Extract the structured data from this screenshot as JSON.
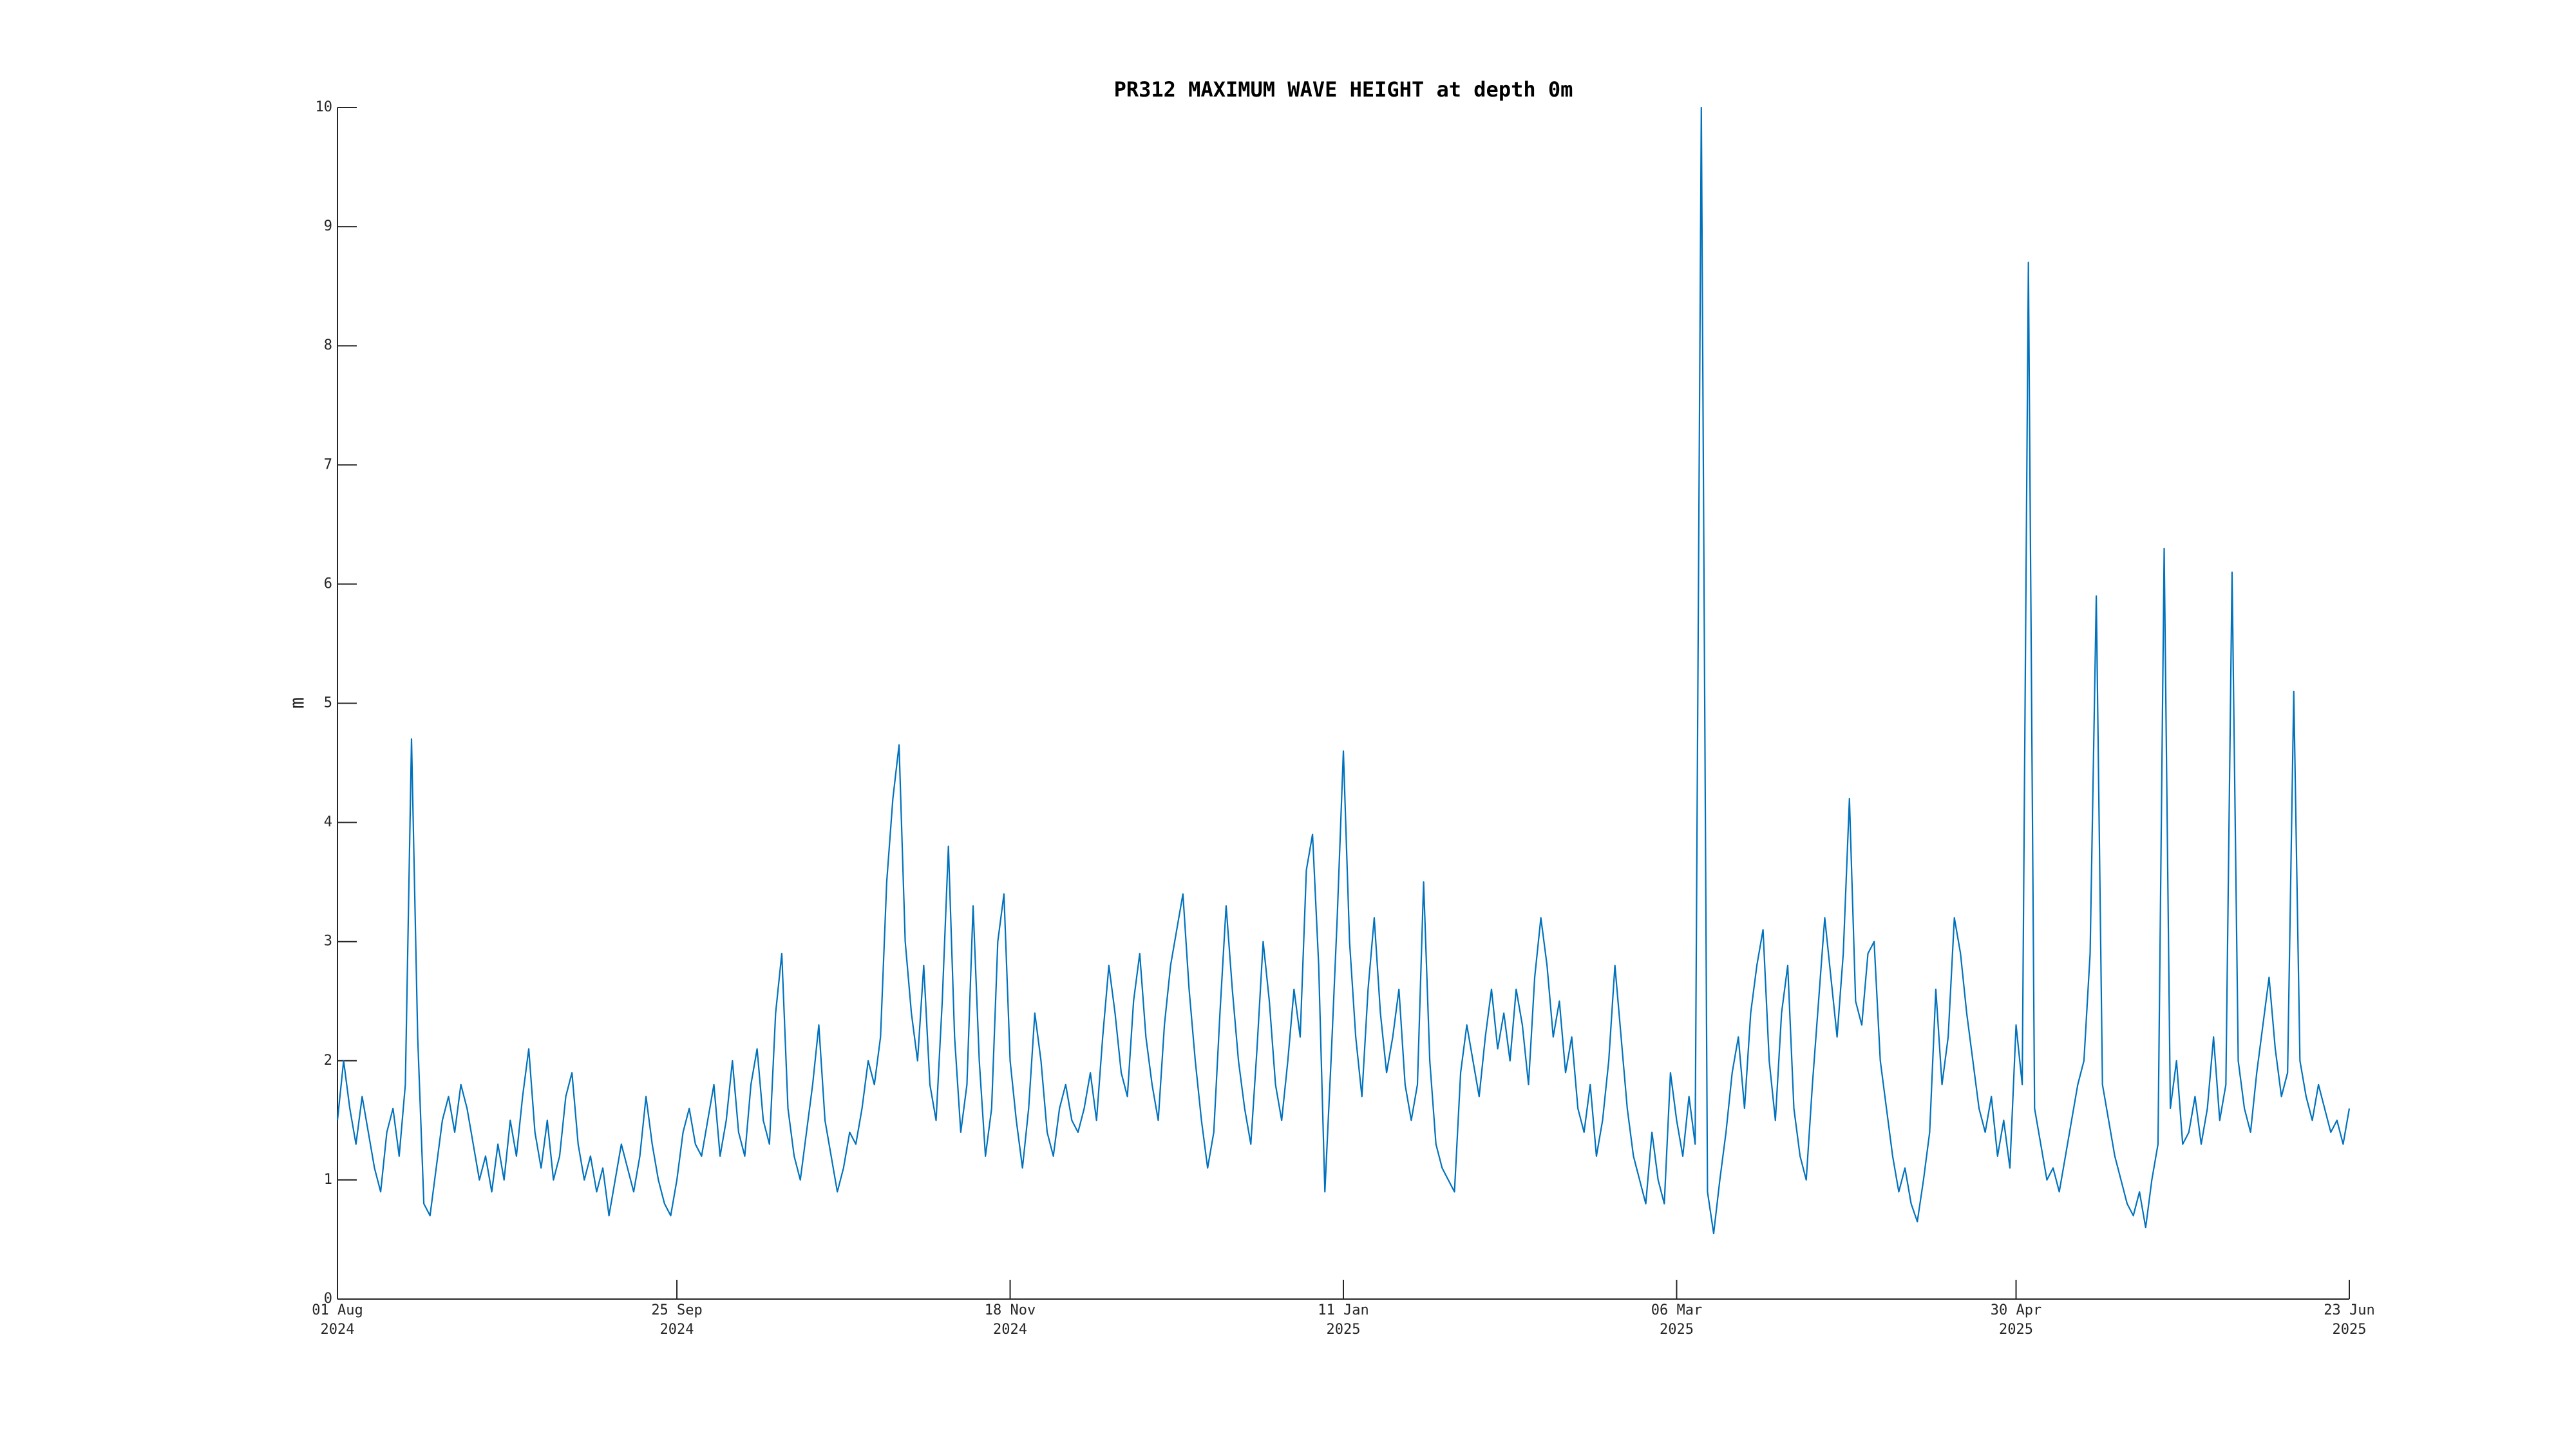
{
  "chart_data": {
    "type": "line",
    "title": "PR312 MAXIMUM WAVE HEIGHT at depth 0m",
    "ylabel": "m",
    "xlim": [
      "2024-08-01",
      "2025-06-23"
    ],
    "xticks": [
      {
        "value": "2024-08-01",
        "label": "01 Aug 2024"
      },
      {
        "value": "2024-09-25",
        "label": "25 Sep 2024"
      },
      {
        "value": "2024-11-18",
        "label": "18 Nov 2024"
      },
      {
        "value": "2025-01-11",
        "label": "11 Jan 2025"
      },
      {
        "value": "2025-03-06",
        "label": "06 Mar 2025"
      },
      {
        "value": "2025-04-30",
        "label": "30 Apr 2025"
      },
      {
        "value": "2025-06-23",
        "label": "23 Jun 2025"
      }
    ],
    "ylim": [
      0,
      10
    ],
    "yticks": [
      0,
      1,
      2,
      3,
      4,
      5,
      6,
      7,
      8,
      9,
      10
    ],
    "x": [
      "2024-08-01",
      "2024-08-02",
      "2024-08-03",
      "2024-08-04",
      "2024-08-05",
      "2024-08-06",
      "2024-08-07",
      "2024-08-08",
      "2024-08-09",
      "2024-08-10",
      "2024-08-11",
      "2024-08-12",
      "2024-08-13",
      "2024-08-14",
      "2024-08-15",
      "2024-08-16",
      "2024-08-17",
      "2024-08-18",
      "2024-08-19",
      "2024-08-20",
      "2024-08-21",
      "2024-08-22",
      "2024-08-23",
      "2024-08-24",
      "2024-08-25",
      "2024-08-26",
      "2024-08-27",
      "2024-08-28",
      "2024-08-29",
      "2024-08-30",
      "2024-08-31",
      "2024-09-01",
      "2024-09-02",
      "2024-09-03",
      "2024-09-04",
      "2024-09-05",
      "2024-09-06",
      "2024-09-07",
      "2024-09-08",
      "2024-09-09",
      "2024-09-10",
      "2024-09-11",
      "2024-09-12",
      "2024-09-13",
      "2024-09-14",
      "2024-09-15",
      "2024-09-16",
      "2024-09-17",
      "2024-09-18",
      "2024-09-19",
      "2024-09-20",
      "2024-09-21",
      "2024-09-22",
      "2024-09-23",
      "2024-09-24",
      "2024-09-25",
      "2024-09-26",
      "2024-09-27",
      "2024-09-28",
      "2024-09-29",
      "2024-09-30",
      "2024-10-01",
      "2024-10-02",
      "2024-10-03",
      "2024-10-04",
      "2024-10-05",
      "2024-10-06",
      "2024-10-07",
      "2024-10-08",
      "2024-10-09",
      "2024-10-10",
      "2024-10-11",
      "2024-10-12",
      "2024-10-13",
      "2024-10-14",
      "2024-10-15",
      "2024-10-16",
      "2024-10-17",
      "2024-10-18",
      "2024-10-19",
      "2024-10-20",
      "2024-10-21",
      "2024-10-22",
      "2024-10-23",
      "2024-10-24",
      "2024-10-25",
      "2024-10-26",
      "2024-10-27",
      "2024-10-28",
      "2024-10-29",
      "2024-10-30",
      "2024-10-31",
      "2024-11-01",
      "2024-11-02",
      "2024-11-03",
      "2024-11-04",
      "2024-11-05",
      "2024-11-06",
      "2024-11-07",
      "2024-11-08",
      "2024-11-09",
      "2024-11-10",
      "2024-11-11",
      "2024-11-12",
      "2024-11-13",
      "2024-11-14",
      "2024-11-15",
      "2024-11-16",
      "2024-11-17",
      "2024-11-18",
      "2024-11-19",
      "2024-11-20",
      "2024-11-21",
      "2024-11-22",
      "2024-11-23",
      "2024-11-24",
      "2024-11-25",
      "2024-11-26",
      "2024-11-27",
      "2024-11-28",
      "2024-11-29",
      "2024-11-30",
      "2024-12-01",
      "2024-12-02",
      "2024-12-03",
      "2024-12-04",
      "2024-12-05",
      "2024-12-06",
      "2024-12-07",
      "2024-12-08",
      "2024-12-09",
      "2024-12-10",
      "2024-12-11",
      "2024-12-12",
      "2024-12-13",
      "2024-12-14",
      "2024-12-15",
      "2024-12-16",
      "2024-12-17",
      "2024-12-18",
      "2024-12-19",
      "2024-12-20",
      "2024-12-21",
      "2024-12-22",
      "2024-12-23",
      "2024-12-24",
      "2024-12-25",
      "2024-12-26",
      "2024-12-27",
      "2024-12-28",
      "2024-12-29",
      "2024-12-30",
      "2024-12-31",
      "2025-01-01",
      "2025-01-02",
      "2025-01-03",
      "2025-01-04",
      "2025-01-05",
      "2025-01-06",
      "2025-01-07",
      "2025-01-08",
      "2025-01-09",
      "2025-01-10",
      "2025-01-11",
      "2025-01-12",
      "2025-01-13",
      "2025-01-14",
      "2025-01-15",
      "2025-01-16",
      "2025-01-17",
      "2025-01-18",
      "2025-01-19",
      "2025-01-20",
      "2025-01-21",
      "2025-01-22",
      "2025-01-23",
      "2025-01-24",
      "2025-01-25",
      "2025-01-26",
      "2025-01-27",
      "2025-01-28",
      "2025-01-29",
      "2025-01-30",
      "2025-01-31",
      "2025-02-01",
      "2025-02-02",
      "2025-02-03",
      "2025-02-04",
      "2025-02-05",
      "2025-02-06",
      "2025-02-07",
      "2025-02-08",
      "2025-02-09",
      "2025-02-10",
      "2025-02-11",
      "2025-02-12",
      "2025-02-13",
      "2025-02-14",
      "2025-02-15",
      "2025-02-16",
      "2025-02-17",
      "2025-02-18",
      "2025-02-19",
      "2025-02-20",
      "2025-02-21",
      "2025-02-22",
      "2025-02-23",
      "2025-02-24",
      "2025-02-25",
      "2025-02-26",
      "2025-02-27",
      "2025-02-28",
      "2025-03-01",
      "2025-03-02",
      "2025-03-03",
      "2025-03-04",
      "2025-03-05",
      "2025-03-06",
      "2025-03-07",
      "2025-03-08",
      "2025-03-09",
      "2025-03-10",
      "2025-03-11",
      "2025-03-12",
      "2025-03-13",
      "2025-03-14",
      "2025-03-15",
      "2025-03-16",
      "2025-03-17",
      "2025-03-18",
      "2025-03-19",
      "2025-03-20",
      "2025-03-21",
      "2025-03-22",
      "2025-03-23",
      "2025-03-24",
      "2025-03-25",
      "2025-03-26",
      "2025-03-27",
      "2025-03-28",
      "2025-03-29",
      "2025-03-30",
      "2025-03-31",
      "2025-04-01",
      "2025-04-02",
      "2025-04-03",
      "2025-04-04",
      "2025-04-05",
      "2025-04-06",
      "2025-04-07",
      "2025-04-08",
      "2025-04-09",
      "2025-04-10",
      "2025-04-11",
      "2025-04-12",
      "2025-04-13",
      "2025-04-14",
      "2025-04-15",
      "2025-04-16",
      "2025-04-17",
      "2025-04-18",
      "2025-04-19",
      "2025-04-20",
      "2025-04-21",
      "2025-04-22",
      "2025-04-23",
      "2025-04-24",
      "2025-04-25",
      "2025-04-26",
      "2025-04-27",
      "2025-04-28",
      "2025-04-29",
      "2025-04-30",
      "2025-05-01",
      "2025-05-02",
      "2025-05-03",
      "2025-05-04",
      "2025-05-05",
      "2025-05-06",
      "2025-05-07",
      "2025-05-08",
      "2025-05-09",
      "2025-05-10",
      "2025-05-11",
      "2025-05-12",
      "2025-05-13",
      "2025-05-14",
      "2025-05-15",
      "2025-05-16",
      "2025-05-17",
      "2025-05-18",
      "2025-05-19",
      "2025-05-20",
      "2025-05-21",
      "2025-05-22",
      "2025-05-23",
      "2025-05-24",
      "2025-05-25",
      "2025-05-26",
      "2025-05-27",
      "2025-05-28",
      "2025-05-29",
      "2025-05-30",
      "2025-05-31",
      "2025-06-01",
      "2025-06-02",
      "2025-06-03",
      "2025-06-04",
      "2025-06-05",
      "2025-06-06",
      "2025-06-07",
      "2025-06-08",
      "2025-06-09",
      "2025-06-10",
      "2025-06-11",
      "2025-06-12",
      "2025-06-13",
      "2025-06-14",
      "2025-06-15",
      "2025-06-16",
      "2025-06-17",
      "2025-06-18",
      "2025-06-19",
      "2025-06-20",
      "2025-06-21",
      "2025-06-22",
      "2025-06-23"
    ],
    "series": [
      {
        "color": "#0072bd",
        "values": [
          1.5,
          2.0,
          1.6,
          1.3,
          1.7,
          1.4,
          1.1,
          0.9,
          1.4,
          1.6,
          1.2,
          1.8,
          4.7,
          2.2,
          0.8,
          0.7,
          1.1,
          1.5,
          1.7,
          1.4,
          1.8,
          1.6,
          1.3,
          1.0,
          1.2,
          0.9,
          1.3,
          1.0,
          1.5,
          1.2,
          1.7,
          2.1,
          1.4,
          1.1,
          1.5,
          1.0,
          1.2,
          1.7,
          1.9,
          1.3,
          1.0,
          1.2,
          0.9,
          1.1,
          0.7,
          1.0,
          1.3,
          1.1,
          0.9,
          1.2,
          1.7,
          1.3,
          1.0,
          0.8,
          0.7,
          1.0,
          1.4,
          1.6,
          1.3,
          1.2,
          1.5,
          1.8,
          1.2,
          1.5,
          2.0,
          1.4,
          1.2,
          1.8,
          2.1,
          1.5,
          1.3,
          2.4,
          2.9,
          1.6,
          1.2,
          1.0,
          1.4,
          1.8,
          2.3,
          1.5,
          1.2,
          0.9,
          1.1,
          1.4,
          1.3,
          1.6,
          2.0,
          1.8,
          2.2,
          3.5,
          4.2,
          4.65,
          3.0,
          2.4,
          2.0,
          2.8,
          1.8,
          1.5,
          2.5,
          3.8,
          2.2,
          1.4,
          1.8,
          3.3,
          2.0,
          1.2,
          1.6,
          3.0,
          3.4,
          2.0,
          1.5,
          1.1,
          1.6,
          2.4,
          2.0,
          1.4,
          1.2,
          1.6,
          1.8,
          1.5,
          1.4,
          1.6,
          1.9,
          1.5,
          2.2,
          2.8,
          2.4,
          1.9,
          1.7,
          2.5,
          2.9,
          2.2,
          1.8,
          1.5,
          2.3,
          2.8,
          3.1,
          3.4,
          2.6,
          2.0,
          1.5,
          1.1,
          1.4,
          2.4,
          3.3,
          2.6,
          2.0,
          1.6,
          1.3,
          2.1,
          3.0,
          2.5,
          1.8,
          1.5,
          2.0,
          2.6,
          2.2,
          3.6,
          3.9,
          2.8,
          0.9,
          2.0,
          3.2,
          4.6,
          3.0,
          2.2,
          1.7,
          2.6,
          3.2,
          2.4,
          1.9,
          2.2,
          2.6,
          1.8,
          1.5,
          1.8,
          3.5,
          2.0,
          1.3,
          1.1,
          1.0,
          0.9,
          1.9,
          2.3,
          2.0,
          1.7,
          2.2,
          2.6,
          2.1,
          2.4,
          2.0,
          2.6,
          2.3,
          1.8,
          2.7,
          3.2,
          2.8,
          2.2,
          2.5,
          1.9,
          2.2,
          1.6,
          1.4,
          1.8,
          1.2,
          1.5,
          2.0,
          2.8,
          2.2,
          1.6,
          1.2,
          1.0,
          0.8,
          1.4,
          1.0,
          0.8,
          1.9,
          1.5,
          1.2,
          1.7,
          1.3,
          10,
          0.9,
          0.55,
          1.0,
          1.4,
          1.9,
          2.2,
          1.6,
          2.4,
          2.8,
          3.1,
          2.0,
          1.5,
          2.4,
          2.8,
          1.6,
          1.2,
          1.0,
          1.8,
          2.5,
          3.2,
          2.7,
          2.2,
          2.9,
          4.2,
          2.5,
          2.3,
          2.9,
          3.0,
          2.0,
          1.6,
          1.2,
          0.9,
          1.1,
          0.8,
          0.65,
          1.0,
          1.4,
          2.6,
          1.8,
          2.2,
          3.2,
          2.9,
          2.4,
          2.0,
          1.6,
          1.4,
          1.7,
          1.2,
          1.5,
          1.1,
          2.3,
          1.8,
          8.7,
          1.6,
          1.3,
          1.0,
          1.1,
          0.9,
          1.2,
          1.5,
          1.8,
          2.0,
          2.9,
          5.9,
          1.8,
          1.5,
          1.2,
          1.0,
          0.8,
          0.7,
          0.9,
          0.6,
          1.0,
          1.3,
          6.3,
          1.6,
          2.0,
          1.3,
          1.4,
          1.7,
          1.3,
          1.6,
          2.2,
          1.5,
          1.8,
          6.1,
          2.0,
          1.6,
          1.4,
          1.9,
          2.3,
          2.7,
          2.1,
          1.7,
          1.9,
          5.1,
          2.0,
          1.7,
          1.5,
          1.8,
          1.6,
          1.4,
          1.5,
          1.3,
          1.6
        ]
      }
    ]
  }
}
